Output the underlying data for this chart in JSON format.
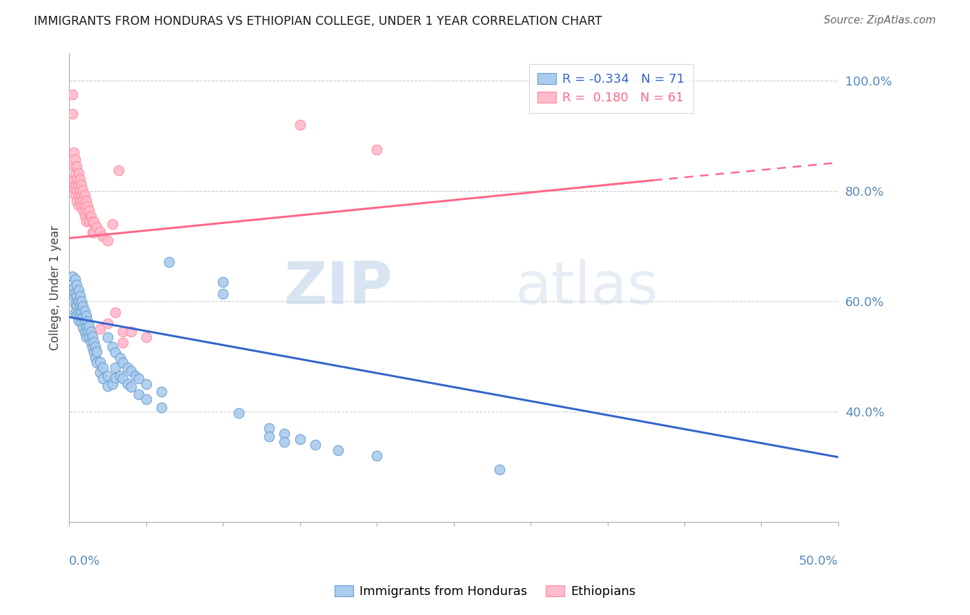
{
  "title": "IMMIGRANTS FROM HONDURAS VS ETHIOPIAN COLLEGE, UNDER 1 YEAR CORRELATION CHART",
  "source": "Source: ZipAtlas.com",
  "ylabel": "College, Under 1 year",
  "watermark_zip": "ZIP",
  "watermark_atlas": "atlas",
  "blue_scatter": [
    [
      0.002,
      0.645
    ],
    [
      0.003,
      0.625
    ],
    [
      0.003,
      0.61
    ],
    [
      0.004,
      0.64
    ],
    [
      0.004,
      0.615
    ],
    [
      0.004,
      0.595
    ],
    [
      0.004,
      0.58
    ],
    [
      0.005,
      0.63
    ],
    [
      0.005,
      0.61
    ],
    [
      0.005,
      0.593
    ],
    [
      0.005,
      0.575
    ],
    [
      0.006,
      0.62
    ],
    [
      0.006,
      0.6
    ],
    [
      0.006,
      0.582
    ],
    [
      0.006,
      0.565
    ],
    [
      0.007,
      0.61
    ],
    [
      0.007,
      0.593
    ],
    [
      0.007,
      0.575
    ],
    [
      0.008,
      0.6
    ],
    [
      0.008,
      0.582
    ],
    [
      0.008,
      0.562
    ],
    [
      0.009,
      0.592
    ],
    [
      0.009,
      0.572
    ],
    [
      0.009,
      0.553
    ],
    [
      0.01,
      0.583
    ],
    [
      0.01,
      0.563
    ],
    [
      0.01,
      0.544
    ],
    [
      0.011,
      0.574
    ],
    [
      0.011,
      0.554
    ],
    [
      0.011,
      0.535
    ],
    [
      0.012,
      0.564
    ],
    [
      0.012,
      0.545
    ],
    [
      0.013,
      0.555
    ],
    [
      0.013,
      0.535
    ],
    [
      0.014,
      0.546
    ],
    [
      0.014,
      0.526
    ],
    [
      0.015,
      0.537
    ],
    [
      0.015,
      0.517
    ],
    [
      0.016,
      0.527
    ],
    [
      0.016,
      0.508
    ],
    [
      0.017,
      0.518
    ],
    [
      0.017,
      0.498
    ],
    [
      0.018,
      0.509
    ],
    [
      0.018,
      0.489
    ],
    [
      0.02,
      0.49
    ],
    [
      0.02,
      0.472
    ],
    [
      0.022,
      0.48
    ],
    [
      0.022,
      0.46
    ],
    [
      0.025,
      0.536
    ],
    [
      0.025,
      0.465
    ],
    [
      0.025,
      0.447
    ],
    [
      0.028,
      0.518
    ],
    [
      0.028,
      0.45
    ],
    [
      0.03,
      0.508
    ],
    [
      0.03,
      0.48
    ],
    [
      0.03,
      0.462
    ],
    [
      0.033,
      0.498
    ],
    [
      0.033,
      0.466
    ],
    [
      0.035,
      0.489
    ],
    [
      0.035,
      0.46
    ],
    [
      0.038,
      0.48
    ],
    [
      0.038,
      0.451
    ],
    [
      0.04,
      0.474
    ],
    [
      0.04,
      0.445
    ],
    [
      0.043,
      0.466
    ],
    [
      0.045,
      0.46
    ],
    [
      0.045,
      0.432
    ],
    [
      0.05,
      0.451
    ],
    [
      0.05,
      0.423
    ],
    [
      0.06,
      0.437
    ],
    [
      0.06,
      0.408
    ],
    [
      0.065,
      0.672
    ],
    [
      0.1,
      0.636
    ],
    [
      0.1,
      0.614
    ],
    [
      0.11,
      0.398
    ],
    [
      0.13,
      0.37
    ],
    [
      0.13,
      0.355
    ],
    [
      0.14,
      0.36
    ],
    [
      0.14,
      0.345
    ],
    [
      0.15,
      0.35
    ],
    [
      0.16,
      0.34
    ],
    [
      0.175,
      0.33
    ],
    [
      0.2,
      0.32
    ],
    [
      0.28,
      0.295
    ]
  ],
  "pink_scatter": [
    [
      0.002,
      0.975
    ],
    [
      0.002,
      0.94
    ],
    [
      0.003,
      0.87
    ],
    [
      0.003,
      0.845
    ],
    [
      0.003,
      0.82
    ],
    [
      0.003,
      0.805
    ],
    [
      0.004,
      0.858
    ],
    [
      0.004,
      0.83
    ],
    [
      0.004,
      0.81
    ],
    [
      0.004,
      0.793
    ],
    [
      0.005,
      0.845
    ],
    [
      0.005,
      0.822
    ],
    [
      0.005,
      0.802
    ],
    [
      0.005,
      0.782
    ],
    [
      0.006,
      0.833
    ],
    [
      0.006,
      0.812
    ],
    [
      0.006,
      0.793
    ],
    [
      0.006,
      0.774
    ],
    [
      0.007,
      0.822
    ],
    [
      0.007,
      0.802
    ],
    [
      0.007,
      0.784
    ],
    [
      0.008,
      0.812
    ],
    [
      0.008,
      0.793
    ],
    [
      0.008,
      0.774
    ],
    [
      0.009,
      0.802
    ],
    [
      0.009,
      0.784
    ],
    [
      0.009,
      0.765
    ],
    [
      0.01,
      0.793
    ],
    [
      0.01,
      0.774
    ],
    [
      0.01,
      0.755
    ],
    [
      0.011,
      0.783
    ],
    [
      0.011,
      0.765
    ],
    [
      0.011,
      0.745
    ],
    [
      0.012,
      0.773
    ],
    [
      0.013,
      0.764
    ],
    [
      0.013,
      0.745
    ],
    [
      0.014,
      0.754
    ],
    [
      0.015,
      0.745
    ],
    [
      0.015,
      0.726
    ],
    [
      0.016,
      0.744
    ],
    [
      0.016,
      0.725
    ],
    [
      0.018,
      0.735
    ],
    [
      0.02,
      0.727
    ],
    [
      0.02,
      0.55
    ],
    [
      0.022,
      0.718
    ],
    [
      0.025,
      0.71
    ],
    [
      0.025,
      0.56
    ],
    [
      0.028,
      0.74
    ],
    [
      0.03,
      0.58
    ],
    [
      0.032,
      0.838
    ],
    [
      0.035,
      0.545
    ],
    [
      0.035,
      0.525
    ],
    [
      0.04,
      0.545
    ],
    [
      0.05,
      0.535
    ],
    [
      0.15,
      0.92
    ],
    [
      0.2,
      0.875
    ]
  ],
  "blue_line": {
    "x": [
      0.0,
      0.5
    ],
    "y": [
      0.572,
      0.318
    ]
  },
  "pink_line": {
    "x": [
      0.0,
      0.38
    ],
    "y": [
      0.715,
      0.82
    ]
  },
  "pink_dashed": {
    "x": [
      0.38,
      0.5
    ],
    "y": [
      0.82,
      0.852
    ]
  },
  "xlim": [
    0.0,
    0.5
  ],
  "ylim": [
    0.2,
    1.05
  ],
  "yticks": [
    0.4,
    0.6,
    0.8,
    1.0
  ],
  "ytick_labels": [
    "40.0%",
    "60.0%",
    "80.0%",
    "100.0%"
  ],
  "title_color": "#1a1a1a",
  "source_color": "#666666",
  "axis_color": "#5588bb",
  "grid_color": "#cccccc",
  "blue_scatter_face": "#aaccee",
  "blue_scatter_edge": "#6699cc",
  "pink_scatter_face": "#ffbbcc",
  "pink_scatter_edge": "#ff8899",
  "blue_line_color": "#3366cc",
  "pink_line_color": "#ff6688",
  "legend_blue_label": "R = -0.334   N = 71",
  "legend_pink_label": "R =  0.180   N = 61",
  "bottom_legend_blue": "Immigrants from Honduras",
  "bottom_legend_pink": "Ethiopians"
}
